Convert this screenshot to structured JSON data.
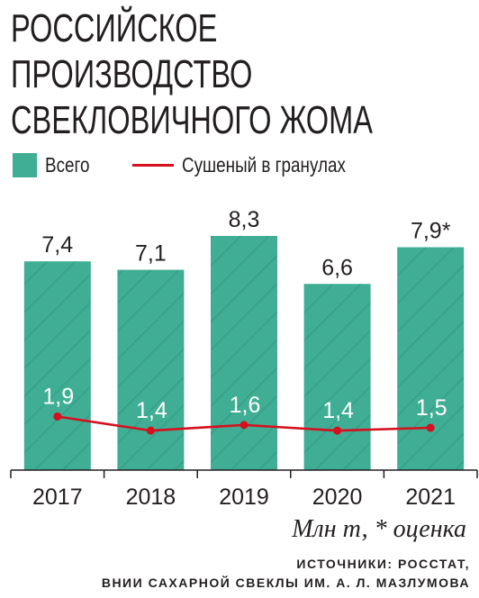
{
  "title_lines": [
    "РОССИЙСКОЕ",
    "ПРОИЗВОДСТВО",
    "СВЕКЛОВИЧНОГО ЖОМА"
  ],
  "legend": {
    "total": "Всего",
    "dried": "Сушеный в гранулах"
  },
  "colors": {
    "bar": "#3fae94",
    "bar_hatch": "#2f8f79",
    "line": "#d6101e",
    "text": "#231f20"
  },
  "chart_data": {
    "type": "bar",
    "categories": [
      "2017",
      "2018",
      "2019",
      "2020",
      "2021"
    ],
    "series": [
      {
        "name": "Всего",
        "type": "bar",
        "values": [
          7.4,
          7.1,
          8.3,
          6.6,
          7.9
        ],
        "labels": [
          "7,4",
          "7,1",
          "8,3",
          "6,6",
          "7,9*"
        ]
      },
      {
        "name": "Сушеный в гранулах",
        "type": "line",
        "values": [
          1.9,
          1.4,
          1.6,
          1.4,
          1.5
        ],
        "labels": [
          "1,9",
          "1,4",
          "1,6",
          "1,4",
          "1,5"
        ]
      }
    ],
    "ylim": [
      0,
      8.3
    ]
  },
  "note": "Млн т, * оценка",
  "sources": [
    "ИСТОЧНИКИ: РОССТАТ,",
    "ВНИИ САХАРНОЙ СВЕКЛЫ ИМ. А. Л. МАЗЛУМОВА"
  ]
}
